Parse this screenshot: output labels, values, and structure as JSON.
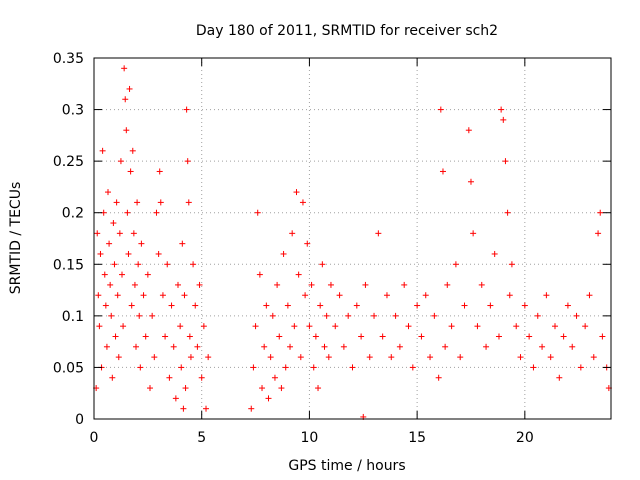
{
  "chart_data": {
    "type": "scatter",
    "title": "Day 180 of 2011, SRMTID for receiver sch2",
    "xlabel": "GPS time / hours",
    "ylabel": "SRMTID / TECUs",
    "xlim": [
      0,
      24
    ],
    "ylim": [
      0,
      0.35
    ],
    "x_ticks": [
      0,
      5,
      10,
      15,
      20
    ],
    "x_tick_labels": [
      "0",
      "5",
      "10",
      "15",
      "20"
    ],
    "y_ticks": [
      0,
      0.05,
      0.1,
      0.15,
      0.2,
      0.25,
      0.3,
      0.35
    ],
    "y_tick_labels": [
      "0",
      "0.05",
      "0.1",
      "0.15",
      "0.2",
      "0.25",
      "0.3",
      "0.35"
    ],
    "grid": true,
    "marker": "plus",
    "series": [
      {
        "name": "SRMTID",
        "color": "#ff0000",
        "points": [
          [
            0.1,
            0.03
          ],
          [
            0.15,
            0.18
          ],
          [
            0.2,
            0.12
          ],
          [
            0.25,
            0.09
          ],
          [
            0.3,
            0.16
          ],
          [
            0.35,
            0.05
          ],
          [
            0.4,
            0.26
          ],
          [
            0.45,
            0.2
          ],
          [
            0.5,
            0.14
          ],
          [
            0.55,
            0.11
          ],
          [
            0.6,
            0.07
          ],
          [
            0.65,
            0.22
          ],
          [
            0.7,
            0.17
          ],
          [
            0.75,
            0.13
          ],
          [
            0.8,
            0.1
          ],
          [
            0.85,
            0.04
          ],
          [
            0.9,
            0.19
          ],
          [
            0.95,
            0.15
          ],
          [
            1.0,
            0.08
          ],
          [
            1.05,
            0.21
          ],
          [
            1.1,
            0.12
          ],
          [
            1.15,
            0.06
          ],
          [
            1.2,
            0.18
          ],
          [
            1.25,
            0.25
          ],
          [
            1.3,
            0.14
          ],
          [
            1.35,
            0.09
          ],
          [
            1.4,
            0.34
          ],
          [
            1.45,
            0.31
          ],
          [
            1.5,
            0.28
          ],
          [
            1.55,
            0.2
          ],
          [
            1.6,
            0.16
          ],
          [
            1.65,
            0.32
          ],
          [
            1.7,
            0.24
          ],
          [
            1.75,
            0.11
          ],
          [
            1.8,
            0.26
          ],
          [
            1.85,
            0.18
          ],
          [
            1.9,
            0.13
          ],
          [
            1.95,
            0.07
          ],
          [
            2.0,
            0.21
          ],
          [
            2.05,
            0.15
          ],
          [
            2.1,
            0.1
          ],
          [
            2.15,
            0.05
          ],
          [
            2.2,
            0.17
          ],
          [
            2.3,
            0.12
          ],
          [
            2.4,
            0.08
          ],
          [
            2.5,
            0.14
          ],
          [
            2.6,
            0.03
          ],
          [
            2.7,
            0.1
          ],
          [
            2.8,
            0.06
          ],
          [
            2.9,
            0.2
          ],
          [
            3.0,
            0.16
          ],
          [
            3.05,
            0.24
          ],
          [
            3.1,
            0.21
          ],
          [
            3.2,
            0.12
          ],
          [
            3.3,
            0.08
          ],
          [
            3.4,
            0.15
          ],
          [
            3.5,
            0.04
          ],
          [
            3.6,
            0.11
          ],
          [
            3.7,
            0.07
          ],
          [
            3.8,
            0.02
          ],
          [
            3.9,
            0.13
          ],
          [
            4.0,
            0.09
          ],
          [
            4.05,
            0.05
          ],
          [
            4.1,
            0.17
          ],
          [
            4.15,
            0.01
          ],
          [
            4.2,
            0.12
          ],
          [
            4.25,
            0.03
          ],
          [
            4.3,
            0.3
          ],
          [
            4.35,
            0.25
          ],
          [
            4.4,
            0.21
          ],
          [
            4.45,
            0.08
          ],
          [
            4.5,
            0.06
          ],
          [
            4.6,
            0.15
          ],
          [
            4.7,
            0.11
          ],
          [
            4.8,
            0.07
          ],
          [
            4.9,
            0.13
          ],
          [
            5.0,
            0.04
          ],
          [
            5.1,
            0.09
          ],
          [
            5.2,
            0.01
          ],
          [
            5.3,
            0.06
          ],
          [
            7.3,
            0.01
          ],
          [
            7.4,
            0.05
          ],
          [
            7.5,
            0.09
          ],
          [
            7.6,
            0.2
          ],
          [
            7.7,
            0.14
          ],
          [
            7.8,
            0.03
          ],
          [
            7.9,
            0.07
          ],
          [
            8.0,
            0.11
          ],
          [
            8.1,
            0.02
          ],
          [
            8.2,
            0.06
          ],
          [
            8.3,
            0.1
          ],
          [
            8.4,
            0.04
          ],
          [
            8.5,
            0.13
          ],
          [
            8.6,
            0.08
          ],
          [
            8.7,
            0.03
          ],
          [
            8.8,
            0.16
          ],
          [
            8.9,
            0.05
          ],
          [
            9.0,
            0.11
          ],
          [
            9.1,
            0.07
          ],
          [
            9.2,
            0.18
          ],
          [
            9.3,
            0.09
          ],
          [
            9.4,
            0.22
          ],
          [
            9.5,
            0.14
          ],
          [
            9.6,
            0.06
          ],
          [
            9.7,
            0.21
          ],
          [
            9.8,
            0.12
          ],
          [
            9.9,
            0.17
          ],
          [
            10.0,
            0.09
          ],
          [
            10.1,
            0.13
          ],
          [
            10.2,
            0.05
          ],
          [
            10.3,
            0.08
          ],
          [
            10.4,
            0.03
          ],
          [
            10.5,
            0.11
          ],
          [
            10.6,
            0.15
          ],
          [
            10.7,
            0.07
          ],
          [
            10.8,
            0.1
          ],
          [
            10.9,
            0.06
          ],
          [
            11.0,
            0.13
          ],
          [
            11.2,
            0.09
          ],
          [
            11.4,
            0.12
          ],
          [
            11.6,
            0.07
          ],
          [
            11.8,
            0.1
          ],
          [
            12.0,
            0.05
          ],
          [
            12.2,
            0.11
          ],
          [
            12.4,
            0.08
          ],
          [
            12.5,
            0.002
          ],
          [
            12.6,
            0.13
          ],
          [
            12.8,
            0.06
          ],
          [
            13.0,
            0.1
          ],
          [
            13.2,
            0.18
          ],
          [
            13.4,
            0.08
          ],
          [
            13.6,
            0.12
          ],
          [
            13.8,
            0.06
          ],
          [
            14.0,
            0.1
          ],
          [
            14.2,
            0.07
          ],
          [
            14.4,
            0.13
          ],
          [
            14.6,
            0.09
          ],
          [
            14.8,
            0.05
          ],
          [
            15.0,
            0.11
          ],
          [
            15.2,
            0.08
          ],
          [
            15.4,
            0.12
          ],
          [
            15.6,
            0.06
          ],
          [
            15.8,
            0.1
          ],
          [
            16.0,
            0.04
          ],
          [
            16.1,
            0.3
          ],
          [
            16.2,
            0.24
          ],
          [
            16.3,
            0.07
          ],
          [
            16.4,
            0.13
          ],
          [
            16.6,
            0.09
          ],
          [
            16.8,
            0.15
          ],
          [
            17.0,
            0.06
          ],
          [
            17.2,
            0.11
          ],
          [
            17.4,
            0.28
          ],
          [
            17.5,
            0.23
          ],
          [
            17.6,
            0.18
          ],
          [
            17.8,
            0.09
          ],
          [
            18.0,
            0.13
          ],
          [
            18.2,
            0.07
          ],
          [
            18.4,
            0.11
          ],
          [
            18.6,
            0.16
          ],
          [
            18.8,
            0.08
          ],
          [
            18.9,
            0.3
          ],
          [
            19.0,
            0.29
          ],
          [
            19.1,
            0.25
          ],
          [
            19.2,
            0.2
          ],
          [
            19.3,
            0.12
          ],
          [
            19.4,
            0.15
          ],
          [
            19.6,
            0.09
          ],
          [
            19.8,
            0.06
          ],
          [
            20.0,
            0.11
          ],
          [
            20.2,
            0.08
          ],
          [
            20.4,
            0.05
          ],
          [
            20.6,
            0.1
          ],
          [
            20.8,
            0.07
          ],
          [
            21.0,
            0.12
          ],
          [
            21.2,
            0.06
          ],
          [
            21.4,
            0.09
          ],
          [
            21.6,
            0.04
          ],
          [
            21.8,
            0.08
          ],
          [
            22.0,
            0.11
          ],
          [
            22.2,
            0.07
          ],
          [
            22.4,
            0.1
          ],
          [
            22.6,
            0.05
          ],
          [
            22.8,
            0.09
          ],
          [
            23.0,
            0.12
          ],
          [
            23.2,
            0.06
          ],
          [
            23.4,
            0.18
          ],
          [
            23.5,
            0.2
          ],
          [
            23.6,
            0.08
          ],
          [
            23.8,
            0.05
          ],
          [
            23.9,
            0.03
          ]
        ]
      }
    ]
  }
}
